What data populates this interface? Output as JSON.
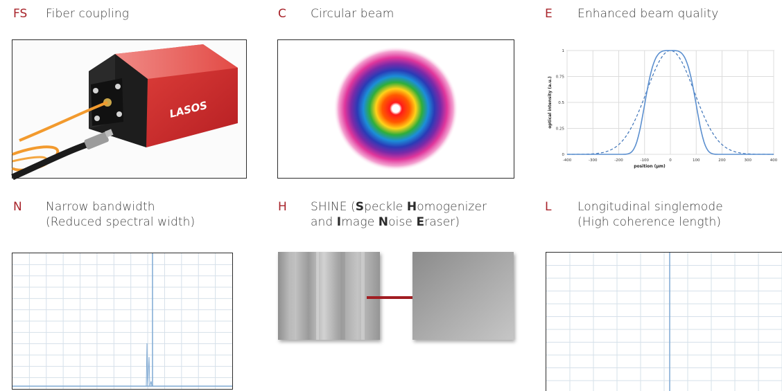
{
  "features": [
    {
      "code": "FS",
      "title": "Fiber coupling",
      "logo_text": "LASOS"
    },
    {
      "code": "C",
      "title": "Circular beam"
    },
    {
      "code": "E",
      "title": "Enhanced beam quality",
      "plot": {
        "ylabel": "optical intensity (a.u.)",
        "xlabel": "position (µm)",
        "yticks": [
          "0",
          "0.25",
          "0.5",
          "0.75",
          "1"
        ],
        "xticks": [
          "-400",
          "-300",
          "-200",
          "-100",
          "0",
          "100",
          "200",
          "300",
          "400"
        ]
      }
    },
    {
      "code": "N",
      "title_line1": "Narrow bandwidth",
      "title_line2": "(Reduced spectral width)"
    },
    {
      "code": "H",
      "title_line1_parts": [
        "SHINE (",
        "S",
        "peckle ",
        "H",
        "omogenizer"
      ],
      "title_line2_parts": [
        "and ",
        "I",
        "mage ",
        "N",
        "oise ",
        "E",
        "raser)"
      ]
    },
    {
      "code": "L",
      "title_line1": "Longitudinal singlemode",
      "title_line2": "(High coherence length)"
    }
  ],
  "colors": {
    "accent": "#a8232a",
    "plot_line": "#7fa9d3",
    "arrow": "#a11d22"
  }
}
